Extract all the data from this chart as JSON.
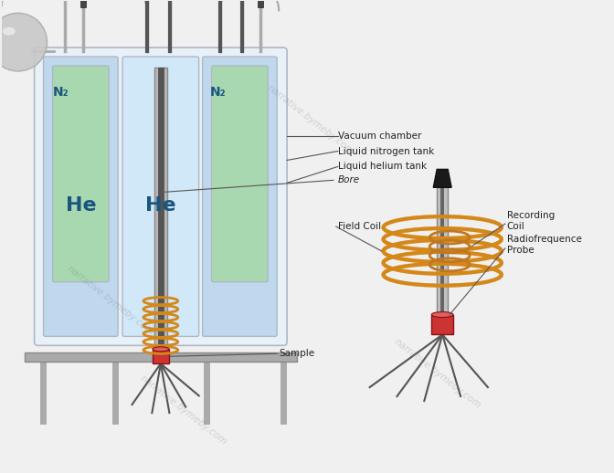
{
  "bg_color": "#f0f0f0",
  "watermark": "narrative.bymeby.com",
  "labels": {
    "vacuum_chamber": "Vacuum chamber",
    "liquid_nitrogen_tank": "Liquid nitrogen tank",
    "liquid_helium_tank": "Liquid helium tank",
    "bore": "Bore",
    "field_coil": "Field Coil",
    "recording_coil": "Recording\nCoil",
    "radiofrequence_probe": "Radiofrequence\nProbe",
    "sample": "Sample",
    "he1": "He",
    "he2": "He",
    "n2_1": "N₂",
    "n2_2": "N₂"
  },
  "colors": {
    "outer_vessel_fill": "#e8f0f8",
    "nitrogen_fill": "#c0d8ee",
    "helium_fill": "#a8d8b0",
    "bore_fill": "#d0e8f8",
    "vessel_wall": "#b0b8c4",
    "tube_gray": "#aaaaaa",
    "tube_dark": "#666666",
    "coil_orange": "#d4881a",
    "coil_light": "#e8a840",
    "rec_coil": "#c07820",
    "red_base": "#cc3333",
    "red_base_light": "#e06060",
    "dark": "#222222",
    "mid_gray": "#888888",
    "stand_gray": "#aaaaaa",
    "sphere_gray": "#c8c8c8",
    "sphere_light": "#e0e0e0",
    "label_color": "#222222",
    "arrow_color": "#333333",
    "line_color": "#999999"
  }
}
